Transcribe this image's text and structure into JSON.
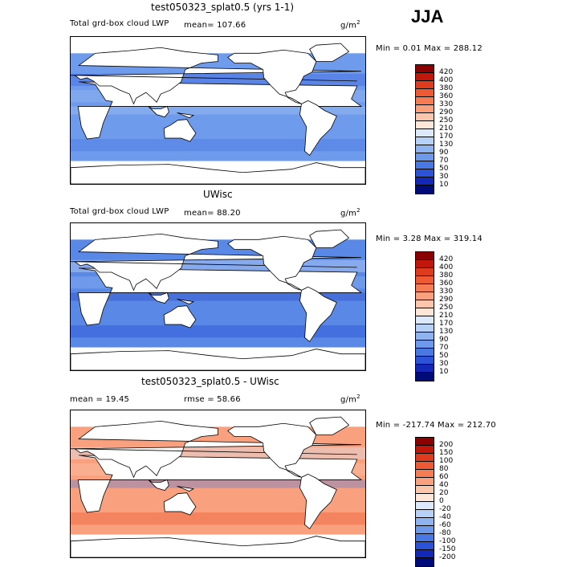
{
  "season": "JJA",
  "panels": [
    {
      "title": "test050323_splat0.5 (yrs 1-1)",
      "variable": "Total grd-box cloud LWP",
      "stat1": "mean=  107.66",
      "stat2": "",
      "unit": "g/m",
      "unit_sup": "2",
      "minmax": "Min =    0.01 Max = 288.12",
      "colorbar_labels": [
        "420",
        "400",
        "380",
        "360",
        "330",
        "290",
        "250",
        "210",
        "170",
        "130",
        "90",
        "70",
        "50",
        "30",
        "10"
      ],
      "colorbar_colors": [
        "#8b0000",
        "#c1170a",
        "#dd3c1e",
        "#ee5a34",
        "#f57c55",
        "#f9a07e",
        "#fbc6ab",
        "#fde6d8",
        "#dce9fa",
        "#b7d0f5",
        "#8fb3ef",
        "#6e98ea",
        "#4a78e2",
        "#2b52d7",
        "#1428b8",
        "#000a78"
      ],
      "color_scheme": "lwp"
    },
    {
      "title": "UWisc",
      "variable": "Total grd-box cloud LWP",
      "stat1": "mean=   88.20",
      "stat2": "",
      "unit": "g/m",
      "unit_sup": "2",
      "minmax": "Min =    3.28 Max = 319.14",
      "colorbar_labels": [
        "420",
        "400",
        "380",
        "360",
        "330",
        "290",
        "250",
        "210",
        "170",
        "130",
        "90",
        "70",
        "50",
        "30",
        "10"
      ],
      "colorbar_colors": [
        "#8b0000",
        "#c1170a",
        "#dd3c1e",
        "#ee5a34",
        "#f57c55",
        "#f9a07e",
        "#fbc6ab",
        "#fde6d8",
        "#dce9fa",
        "#b7d0f5",
        "#8fb3ef",
        "#6e98ea",
        "#4a78e2",
        "#2b52d7",
        "#1428b8",
        "#000a78"
      ],
      "color_scheme": "lwp2"
    },
    {
      "title": "test050323_splat0.5 - UWisc",
      "variable": "",
      "stat1": "mean =   19.45",
      "stat2": "rmse =   58.66",
      "unit": "g/m",
      "unit_sup": "2",
      "minmax": "Min = -217.74 Max = 212.70",
      "colorbar_labels": [
        "200",
        "150",
        "100",
        "80",
        "60",
        "40",
        "20",
        "0",
        "-20",
        "-40",
        "-60",
        "-80",
        "-100",
        "-150",
        "-200"
      ],
      "colorbar_colors": [
        "#8b0000",
        "#c1170a",
        "#dd3c1e",
        "#ee5a34",
        "#f57c55",
        "#f9a07e",
        "#fbc6ab",
        "#fde6d8",
        "#dce9fa",
        "#b7d0f5",
        "#8fb3ef",
        "#6e98ea",
        "#4a78e2",
        "#2b52d7",
        "#1428b8",
        "#000a78"
      ],
      "color_scheme": "diff"
    }
  ]
}
